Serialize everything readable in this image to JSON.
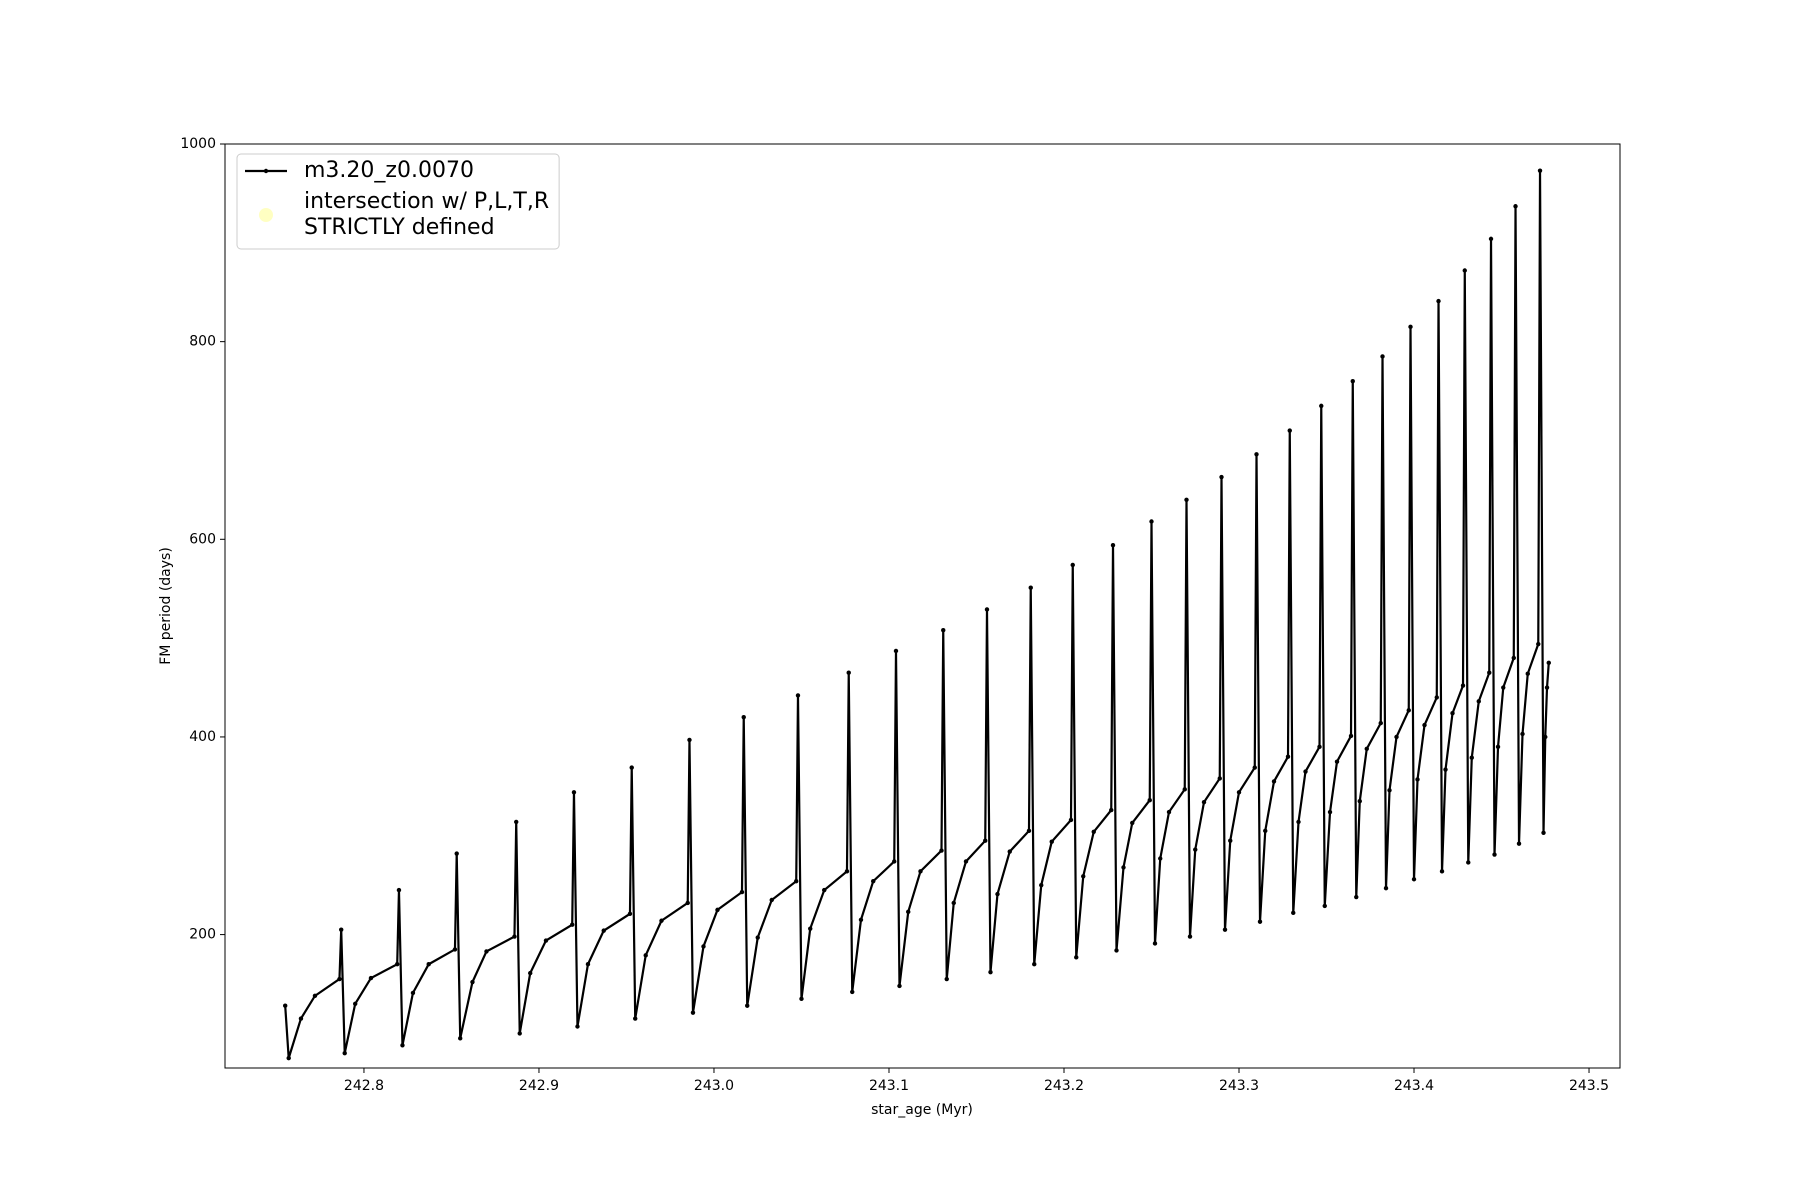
{
  "chart_data": {
    "type": "line",
    "xlabel": "star_age (Myr)",
    "ylabel": "FM period (days)",
    "xlim": [
      242.7206,
      243.5177
    ],
    "ylim": [
      65,
      1000
    ],
    "xticks": [
      242.8,
      242.9,
      {
        "value": 243,
        "label": "243.0"
      },
      243.1,
      243.2,
      243.3,
      243.4,
      243.5
    ],
    "yticks": [
      200,
      400,
      600,
      800,
      1000
    ],
    "grid": false,
    "legend": "upper left",
    "series": [
      {
        "name": "m3.20_z0.0070",
        "color": "#000000",
        "x": [
          242.755,
          242.757,
          242.764,
          242.772,
          242.786,
          242.787,
          242.789,
          242.795,
          242.804,
          242.819,
          242.82,
          242.822,
          242.828,
          242.837,
          242.852,
          242.853,
          242.855,
          242.862,
          242.87,
          242.886,
          242.887,
          242.889,
          242.895,
          242.904,
          242.919,
          242.92,
          242.922,
          242.928,
          242.937,
          242.952,
          242.953,
          242.955,
          242.961,
          242.97,
          242.985,
          242.986,
          242.988,
          242.994,
          243.002,
          243.016,
          243.017,
          243.019,
          243.025,
          243.033,
          243.047,
          243.048,
          243.05,
          243.055,
          243.063,
          243.076,
          243.077,
          243.079,
          243.084,
          243.091,
          243.103,
          243.104,
          243.106,
          243.111,
          243.118,
          243.13,
          243.131,
          243.133,
          243.137,
          243.144,
          243.155,
          243.156,
          243.158,
          243.162,
          243.169,
          243.18,
          243.181,
          243.183,
          243.187,
          243.193,
          243.204,
          243.205,
          243.207,
          243.211,
          243.217,
          243.227,
          243.228,
          243.23,
          243.234,
          243.239,
          243.249,
          243.25,
          243.252,
          243.255,
          243.26,
          243.269,
          243.27,
          243.272,
          243.275,
          243.28,
          243.289,
          243.29,
          243.292,
          243.295,
          243.3,
          243.309,
          243.31,
          243.312,
          243.315,
          243.32,
          243.328,
          243.329,
          243.331,
          243.334,
          243.338,
          243.346,
          243.347,
          243.349,
          243.352,
          243.356,
          243.364,
          243.365,
          243.367,
          243.369,
          243.373,
          243.381,
          243.382,
          243.384,
          243.386,
          243.39,
          243.397,
          243.398,
          243.4,
          243.402,
          243.406,
          243.413,
          243.414,
          243.416,
          243.418,
          243.422,
          243.428,
          243.429,
          243.431,
          243.433,
          243.437,
          243.443,
          243.444,
          243.446,
          243.448,
          243.451,
          243.457,
          243.458,
          243.46,
          243.462,
          243.465,
          243.471,
          243.472,
          243.474,
          243.475,
          243.476,
          243.477
        ],
        "values": [
          128,
          75,
          115,
          138,
          155,
          205,
          80,
          130,
          156,
          170,
          245,
          88,
          141,
          170,
          185,
          282,
          95,
          152,
          183,
          198,
          314,
          100,
          161,
          194,
          210,
          344,
          107,
          170,
          204,
          221,
          369,
          115,
          179,
          214,
          232,
          397,
          121,
          188,
          225,
          243,
          420,
          128,
          197,
          235,
          254,
          442,
          135,
          206,
          245,
          264,
          465,
          142,
          215,
          254,
          274,
          487,
          148,
          223,
          264,
          285,
          508,
          155,
          232,
          274,
          295,
          529,
          162,
          241,
          284,
          305,
          551,
          170,
          250,
          294,
          316,
          574,
          177,
          259,
          304,
          326,
          594,
          184,
          268,
          313,
          336,
          618,
          191,
          277,
          324,
          347,
          640,
          198,
          286,
          334,
          358,
          663,
          205,
          295,
          344,
          369,
          686,
          213,
          305,
          355,
          380,
          710,
          222,
          314,
          365,
          390,
          735,
          229,
          324,
          375,
          401,
          760,
          238,
          335,
          388,
          414,
          785,
          247,
          346,
          400,
          427,
          815,
          256,
          357,
          412,
          440,
          841,
          264,
          367,
          424,
          452,
          872,
          273,
          379,
          436,
          465,
          904,
          281,
          390,
          450,
          480,
          937,
          292,
          403,
          464,
          494,
          973,
          303,
          400,
          450,
          475
        ]
      },
      {
        "name": "intersection w/ P,L,T,R\nSTRICTLY defined",
        "type": "scatter",
        "color": "#ffff99",
        "x": [],
        "values": []
      }
    ]
  }
}
